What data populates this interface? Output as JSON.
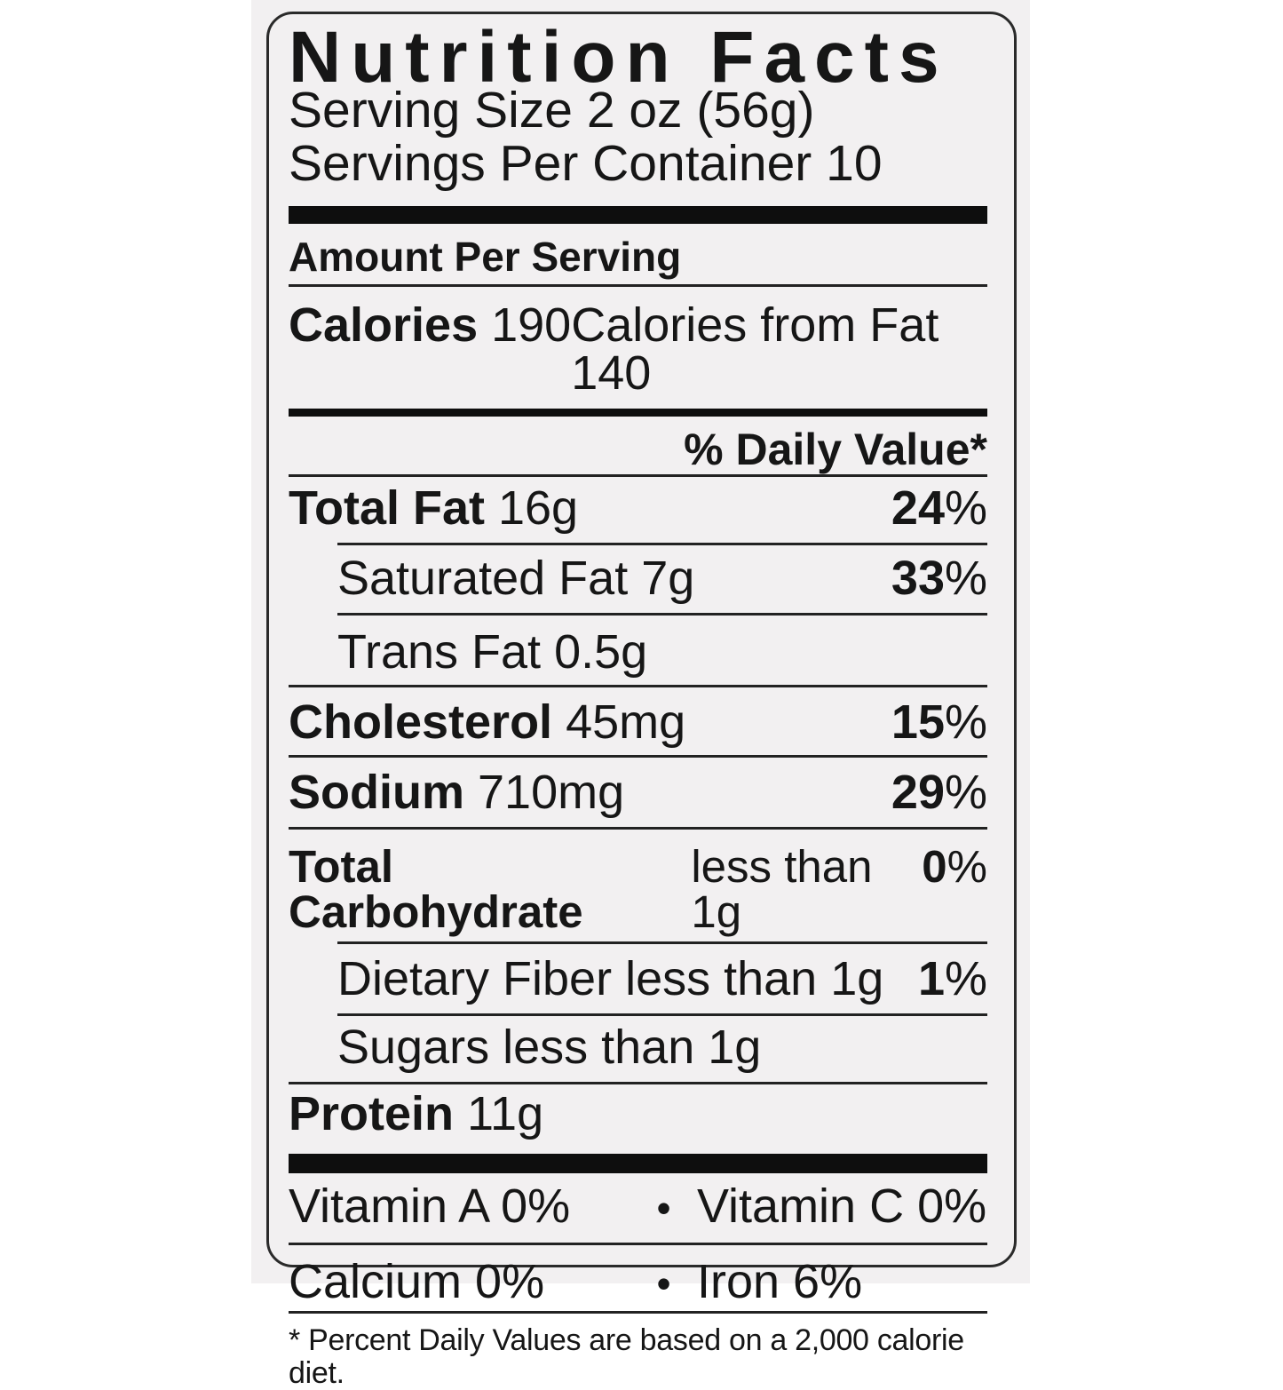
{
  "label": {
    "title": "Nutrition Facts",
    "serving_size": "Serving Size 2 oz (56g)",
    "servings_per_container": "Servings Per Container 10",
    "amount_per_serving": "Amount Per Serving",
    "calories": {
      "name": "Calories",
      "value": "190",
      "from_fat": "Calories from Fat 140"
    },
    "daily_value_header": "% Daily Value*",
    "percent_sign": "%",
    "bullet": "•",
    "nutrients": [
      {
        "name": "Total Fat",
        "amount": "16g",
        "dv": "24"
      },
      {
        "name": "Saturated Fat",
        "amount": "7g",
        "dv": "33"
      },
      {
        "name": "Trans Fat",
        "amount": "0.5g",
        "dv": ""
      },
      {
        "name": "Cholesterol",
        "amount": "45mg",
        "dv": "15"
      },
      {
        "name": "Sodium",
        "amount": "710mg",
        "dv": "29"
      },
      {
        "name": "Total Carbohydrate",
        "amount": "less than 1g",
        "dv": "0"
      },
      {
        "name": "Dietary Fiber",
        "amount": "less than 1g",
        "dv": "1"
      },
      {
        "name": "Sugars",
        "amount": "less than 1g",
        "dv": ""
      },
      {
        "name": "Protein",
        "amount": "11g",
        "dv": ""
      }
    ],
    "micronutrients": [
      {
        "left": "Vitamin A 0%",
        "right": "Vitamin C 0%"
      },
      {
        "left": "Calcium 0%",
        "right": "Iron 6%"
      }
    ],
    "footnote": "* Percent Daily Values are based on a 2,000 calorie diet."
  }
}
